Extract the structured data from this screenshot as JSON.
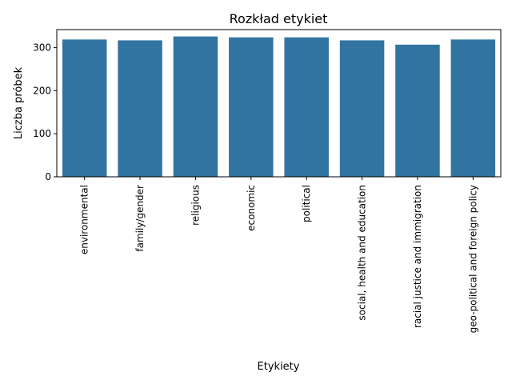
{
  "chart_data": {
    "type": "bar",
    "title": "Rozkład etykiet",
    "xlabel": "Etykiety",
    "ylabel": "Liczba próbek",
    "categories": [
      "environmental",
      "family/gender",
      "religious",
      "economic",
      "political",
      "social, health and education",
      "racial justice and immigration",
      "geo-political and foreign policy"
    ],
    "values": [
      319,
      317,
      326,
      324,
      324,
      317,
      307,
      319
    ],
    "ylim": [
      0,
      342
    ],
    "yticks": [
      0,
      100,
      200,
      300
    ],
    "bar_color": "#3274a1",
    "grid": false,
    "legend": "none"
  }
}
